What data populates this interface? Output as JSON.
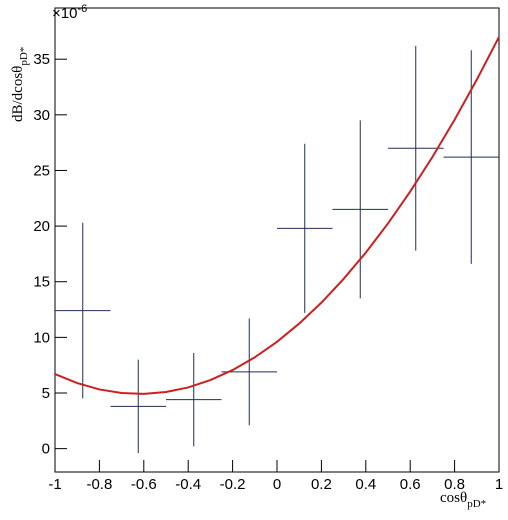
{
  "chart_data": {
    "type": "errorbar",
    "xlabel": "cosθ",
    "xlabel_sub": "pD*",
    "ylabel": "dB/dcosθ",
    "ylabel_sub": "pD*",
    "y_multiplier": "×10",
    "y_multiplier_exp": "-6",
    "xlim": [
      -1,
      1
    ],
    "ylim": [
      -2.1,
      39.6
    ],
    "xticks": [
      -1,
      -0.8,
      -0.6,
      -0.4,
      -0.2,
      0,
      0.2,
      0.4,
      0.6,
      0.8,
      1
    ],
    "yticks": [
      0,
      5,
      10,
      15,
      20,
      25,
      30,
      35
    ],
    "points": {
      "color": "#1f2f57",
      "x": [
        -0.875,
        -0.625,
        -0.375,
        -0.125,
        0.125,
        0.375,
        0.625,
        0.875
      ],
      "xerr": [
        0.125,
        0.125,
        0.125,
        0.125,
        0.125,
        0.125,
        0.125,
        0.125
      ],
      "values": [
        12.4,
        3.8,
        4.4,
        6.9,
        19.8,
        21.5,
        27.0,
        26.2
      ],
      "yerr": [
        7.9,
        4.2,
        4.2,
        4.8,
        7.6,
        8.0,
        9.2,
        9.6
      ]
    },
    "fit": {
      "type": "line",
      "color": "#cc2020",
      "x": [
        -1,
        -0.9,
        -0.8,
        -0.7,
        -0.6,
        -0.5,
        -0.4,
        -0.3,
        -0.2,
        -0.1,
        0,
        0.1,
        0.2,
        0.3,
        0.4,
        0.5,
        0.6,
        0.7,
        0.8,
        0.9,
        1
      ],
      "values": [
        6.7,
        5.89,
        5.32,
        5.0,
        4.92,
        5.09,
        5.5,
        6.16,
        7.06,
        8.21,
        9.6,
        11.24,
        13.12,
        15.25,
        17.62,
        20.24,
        23.1,
        26.21,
        29.56,
        33.16,
        37.0
      ]
    }
  }
}
